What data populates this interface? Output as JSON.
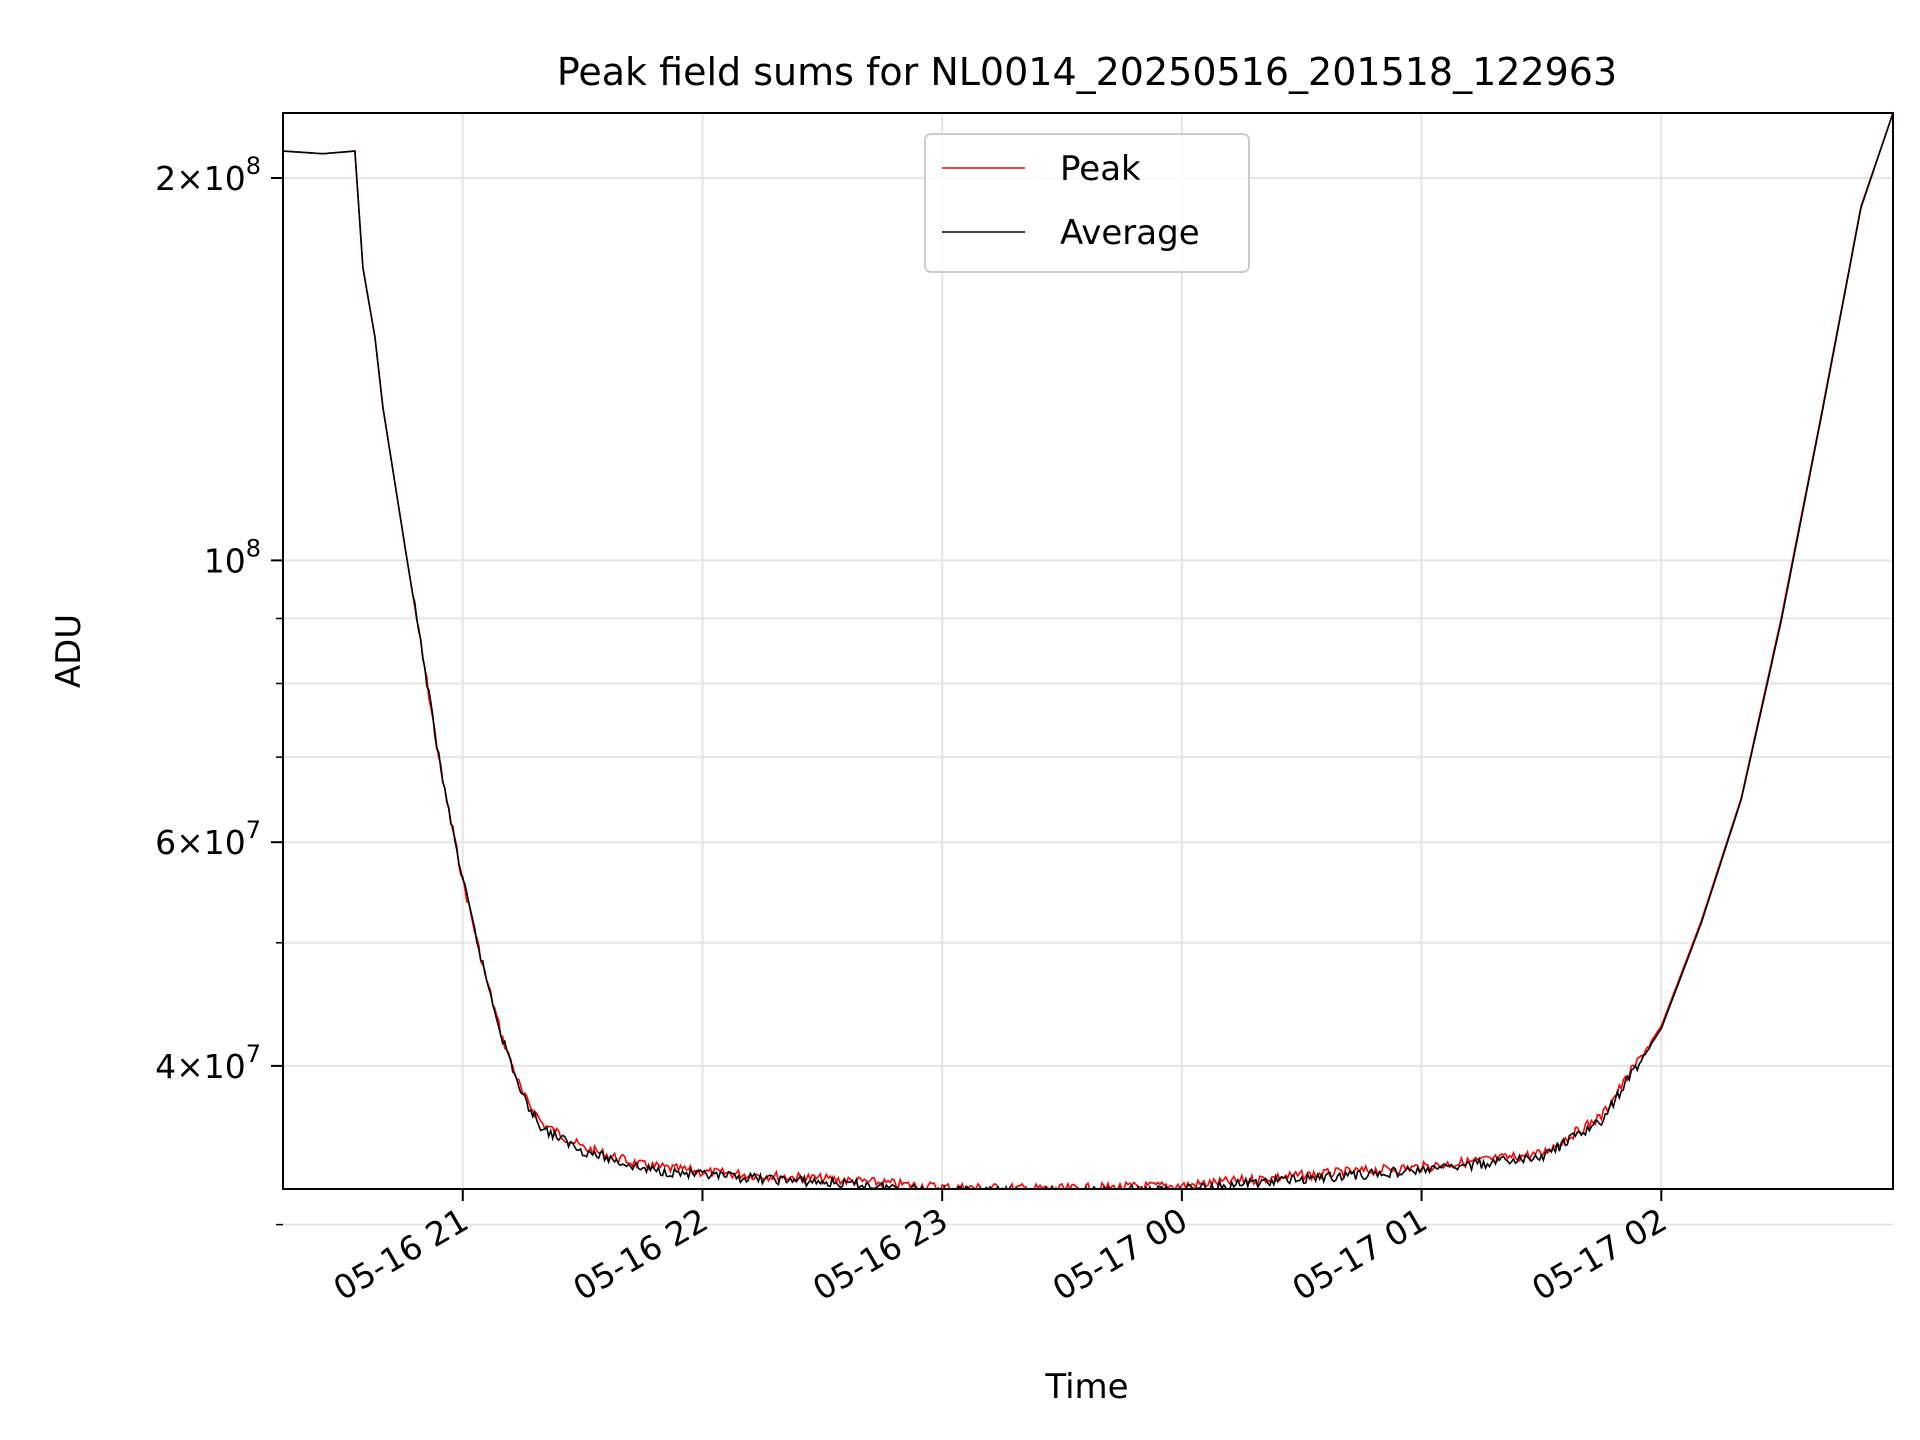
{
  "chart_data": {
    "type": "line",
    "title": "Peak field sums for NL0014_20250516_201518_122963",
    "xlabel": "Time",
    "ylabel": "ADU",
    "yscale": "log",
    "ylim": [
      32000000,
      225000000
    ],
    "xlim": [
      "2025-05-16 20:15",
      "2025-05-17 02:58"
    ],
    "x_ticks": [
      {
        "t": "2025-05-16 21:00",
        "label": "05-16 21"
      },
      {
        "t": "2025-05-16 22:00",
        "label": "05-16 22"
      },
      {
        "t": "2025-05-16 23:00",
        "label": "05-16 23"
      },
      {
        "t": "2025-05-17 00:00",
        "label": "05-17 00"
      },
      {
        "t": "2025-05-17 01:00",
        "label": "05-17 01"
      },
      {
        "t": "2025-05-17 02:00",
        "label": "05-17 02"
      }
    ],
    "y_ticks": [
      {
        "value": 40000000,
        "mantissa": "4",
        "exp": "7"
      },
      {
        "value": 60000000,
        "mantissa": "6",
        "exp": "7"
      },
      {
        "value": 100000000,
        "mantissa": "",
        "exp": "8"
      },
      {
        "value": 200000000,
        "mantissa": "2",
        "exp": "8"
      }
    ],
    "y_minor_ticks": [
      30000000,
      50000000,
      70000000,
      80000000,
      90000000
    ],
    "grid": true,
    "legend_position": "top-center",
    "x": [
      "2025-05-16 20:15",
      "2025-05-16 20:25",
      "2025-05-16 20:33",
      "2025-05-16 20:35",
      "2025-05-16 20:38",
      "2025-05-16 20:40",
      "2025-05-16 20:45",
      "2025-05-16 20:50",
      "2025-05-16 20:55",
      "2025-05-16 21:00",
      "2025-05-16 21:05",
      "2025-05-16 21:10",
      "2025-05-16 21:15",
      "2025-05-16 21:20",
      "2025-05-16 21:30",
      "2025-05-16 21:45",
      "2025-05-16 22:00",
      "2025-05-16 22:30",
      "2025-05-16 23:00",
      "2025-05-16 23:30",
      "2025-05-17 00:00",
      "2025-05-17 00:30",
      "2025-05-17 01:00",
      "2025-05-17 01:30",
      "2025-05-17 01:45",
      "2025-05-17 02:00",
      "2025-05-17 02:10",
      "2025-05-17 02:20",
      "2025-05-17 02:30",
      "2025-05-17 02:40",
      "2025-05-17 02:50",
      "2025-05-17 02:58"
    ],
    "series": [
      {
        "name": "Peak",
        "color": "#ff0000",
        "values": [
          210000000,
          209000000,
          210000000,
          170000000,
          150000000,
          132000000,
          105000000,
          84000000,
          67000000,
          56000000,
          48000000,
          42000000,
          38000000,
          36000000,
          34500000,
          33400000,
          33000000,
          32600000,
          32100000,
          32000000,
          32200000,
          32800000,
          33300000,
          34100000,
          36500000,
          43000000,
          52000000,
          65000000,
          90000000,
          130000000,
          190000000,
          225000000
        ]
      },
      {
        "name": "Average",
        "color": "#000000",
        "values": [
          210000000,
          209000000,
          210000000,
          170000000,
          150000000,
          132000000,
          105000000,
          84000000,
          67000000,
          56000000,
          48000000,
          42000000,
          37800000,
          35700000,
          34300000,
          33200000,
          32800000,
          32400000,
          31900000,
          31800000,
          32000000,
          32600000,
          33100000,
          33900000,
          36200000,
          42800000,
          51800000,
          64800000,
          89500000,
          129500000,
          189500000,
          225000000
        ]
      }
    ]
  }
}
